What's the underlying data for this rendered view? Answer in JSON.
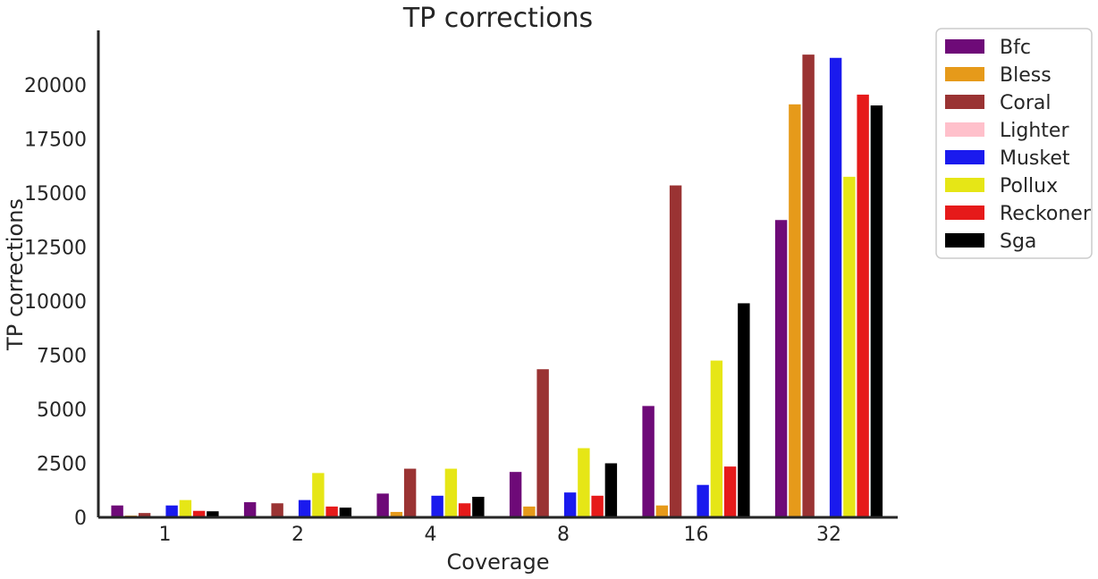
{
  "chart_data": {
    "type": "bar",
    "title": "TP corrections",
    "xlabel": "Coverage",
    "ylabel": "TP corrections",
    "categories": [
      "1",
      "2",
      "4",
      "8",
      "16",
      "32"
    ],
    "ylim": [
      0,
      22500
    ],
    "yticks": [
      0,
      2500,
      5000,
      7500,
      10000,
      12500,
      15000,
      17500,
      20000
    ],
    "grid": false,
    "legend_position": "outside-right-top",
    "series": [
      {
        "name": "Bfc",
        "color": "#6e0a78",
        "values": [
          550,
          700,
          1100,
          2100,
          5150,
          13750
        ]
      },
      {
        "name": "Bless",
        "color": "#e69a1a",
        "values": [
          80,
          0,
          250,
          500,
          550,
          19100
        ]
      },
      {
        "name": "Coral",
        "color": "#9a3333",
        "values": [
          200,
          650,
          2250,
          6850,
          15350,
          21400
        ]
      },
      {
        "name": "Lighter",
        "color": "#ffc0cb",
        "values": [
          0,
          0,
          0,
          0,
          0,
          0
        ]
      },
      {
        "name": "Musket",
        "color": "#1a1aee",
        "values": [
          550,
          800,
          1000,
          1150,
          1500,
          21250
        ]
      },
      {
        "name": "Pollux",
        "color": "#e6e616",
        "values": [
          800,
          2050,
          2250,
          3200,
          7250,
          15750
        ]
      },
      {
        "name": "Reckoner",
        "color": "#e61a1a",
        "values": [
          300,
          500,
          650,
          1000,
          2350,
          19550
        ]
      },
      {
        "name": "Sga",
        "color": "#000000",
        "values": [
          280,
          450,
          950,
          2500,
          9900,
          19050
        ]
      }
    ]
  }
}
